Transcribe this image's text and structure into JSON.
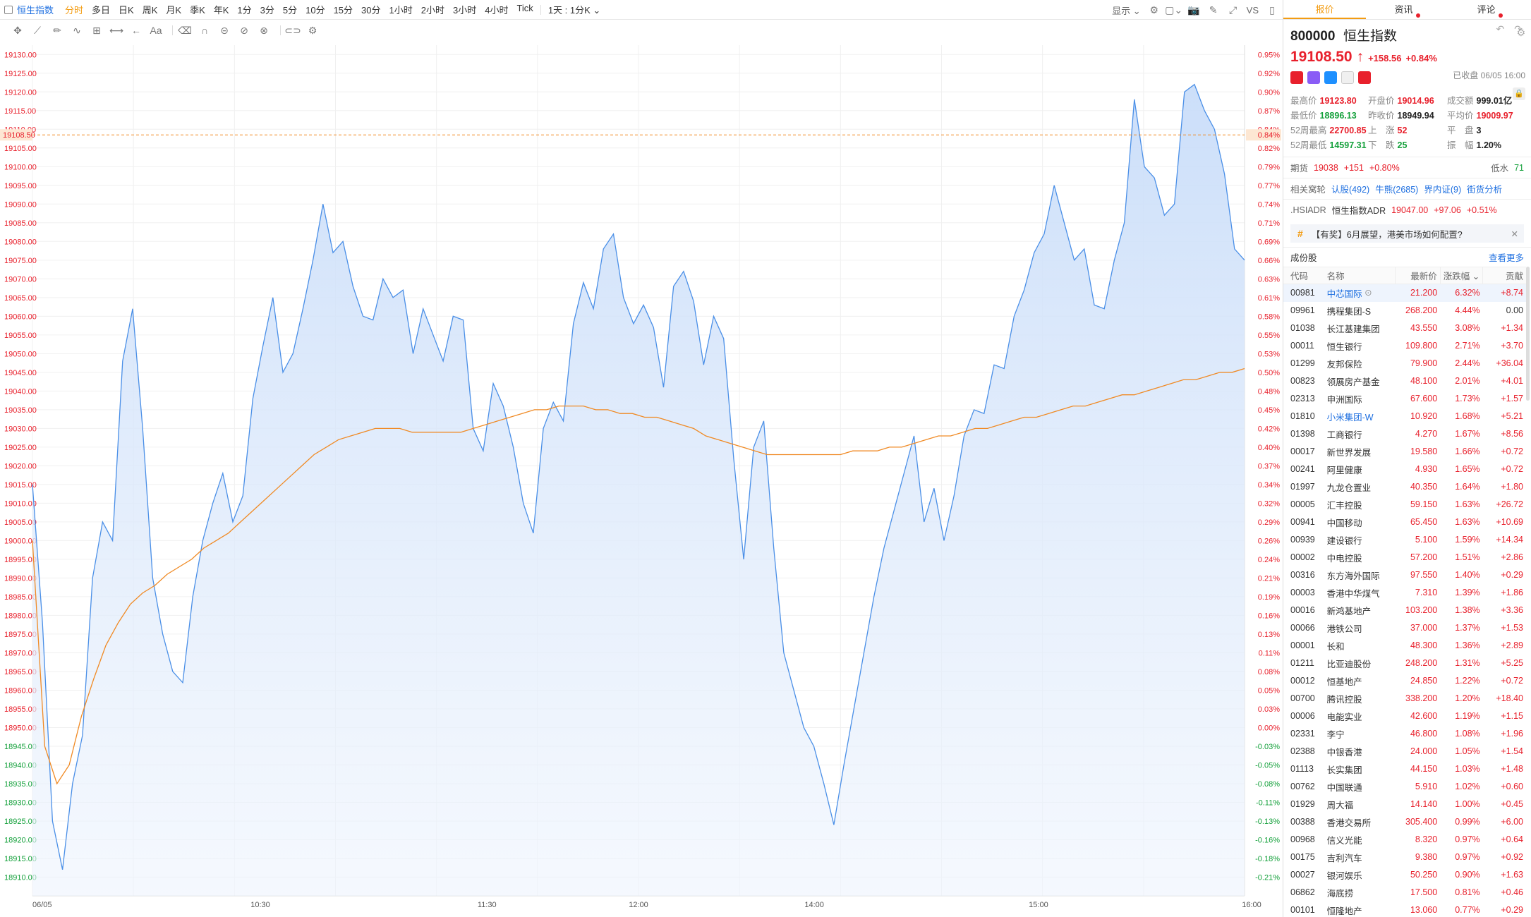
{
  "topbar": {
    "symbol": "恒生指数",
    "periods": [
      "分时",
      "多日",
      "日K",
      "周K",
      "月K",
      "季K",
      "年K",
      "1分",
      "3分",
      "5分",
      "10分",
      "15分",
      "30分",
      "1小时",
      "2小时",
      "3小时",
      "4小时",
      "Tick"
    ],
    "active_period": "分时",
    "range_select": "1天 : 1分K",
    "display_label": "显示",
    "vs_label": "VS"
  },
  "drawbar": {
    "text_tool": "Aa"
  },
  "chart_data": {
    "type": "area",
    "price_axis": {
      "min": 18905.0,
      "max": 19132.5,
      "step": 5,
      "labels_every": 5
    },
    "percent_axis": {
      "min": -0.22,
      "max": 0.96
    },
    "prev_close": 18949.94,
    "last_price": 19108.5,
    "last_price_label": "19108.50",
    "last_pct_label": "0.84%",
    "x_labels": [
      "06/05",
      "10:30",
      "11:30",
      "12:00",
      "14:00",
      "15:00",
      "16:00"
    ],
    "price_series": [
      19015,
      18978,
      18925,
      18912,
      18935,
      18948,
      18990,
      19005,
      19000,
      19048,
      19062,
      19030,
      18990,
      18975,
      18965,
      18962,
      18985,
      19000,
      19010,
      19018,
      19005,
      19012,
      19038,
      19052,
      19065,
      19045,
      19050,
      19062,
      19075,
      19090,
      19077,
      19080,
      19068,
      19060,
      19059,
      19070,
      19065,
      19067,
      19050,
      19062,
      19055,
      19048,
      19060,
      19059,
      19030,
      19024,
      19042,
      19036,
      19025,
      19010,
      19002,
      19030,
      19037,
      19032,
      19058,
      19069,
      19062,
      19078,
      19082,
      19065,
      19058,
      19063,
      19057,
      19041,
      19068,
      19072,
      19064,
      19047,
      19060,
      19054,
      19022,
      18995,
      19025,
      19032,
      18998,
      18970,
      18960,
      18950,
      18945,
      18935,
      18924,
      18940,
      18955,
      18970,
      18985,
      18998,
      19008,
      19018,
      19028,
      19005,
      19014,
      19000,
      19012,
      19028,
      19035,
      19034,
      19047,
      19046,
      19060,
      19067,
      19077,
      19082,
      19095,
      19085,
      19075,
      19078,
      19063,
      19062,
      19075,
      19085,
      19118,
      19100,
      19097,
      19087,
      19090,
      19120,
      19122,
      19115,
      19110,
      19098,
      19078,
      19075
    ],
    "avg_series": [
      19000,
      18945,
      18935,
      18940,
      18953,
      18963,
      18972,
      18978,
      18983,
      18986,
      18988,
      18991,
      18993,
      18995,
      18998,
      19000,
      19002,
      19005,
      19008,
      19011,
      19014,
      19017,
      19020,
      19023,
      19025,
      19027,
      19028,
      19029,
      19030,
      19030,
      19030,
      19029,
      19029,
      19029,
      19029,
      19029,
      19030,
      19031,
      19032,
      19033,
      19034,
      19035,
      19035,
      19036,
      19036,
      19036,
      19035,
      19035,
      19034,
      19034,
      19033,
      19033,
      19032,
      19031,
      19030,
      19028,
      19027,
      19026,
      19025,
      19024,
      19023,
      19023,
      19023,
      19023,
      19023,
      19023,
      19023,
      19024,
      19024,
      19024,
      19025,
      19025,
      19026,
      19027,
      19028,
      19028,
      19029,
      19030,
      19030,
      19031,
      19032,
      19033,
      19033,
      19034,
      19035,
      19036,
      19036,
      19037,
      19038,
      19039,
      19039,
      19040,
      19041,
      19042,
      19043,
      19043,
      19044,
      19045,
      19045,
      19046
    ],
    "title": "",
    "xlabel": "",
    "ylabel": "",
    "colors": {
      "line": "#4a8fe7",
      "area": "#dce9fb",
      "avg": "#f08a24",
      "up": "#e8202c",
      "down": "#13a03a",
      "last_line": "#f08a24"
    },
    "grid": true
  },
  "quote": {
    "tabs": [
      "报价",
      "资讯",
      "评论"
    ],
    "code": "800000",
    "name": "恒生指数",
    "price": "19108.50",
    "arrow": "↑",
    "change": "+158.56",
    "change_pct": "+0.84%",
    "closed_note": "已收盘 06/05 16:00",
    "stats": [
      {
        "label": "最高价",
        "value": "19123.80",
        "color": "red"
      },
      {
        "label": "开盘价",
        "value": "19014.96",
        "color": "red"
      },
      {
        "label": "成交额",
        "value": "999.01亿",
        "color": "dark"
      },
      {
        "label": "最低价",
        "value": "18896.13",
        "color": "green"
      },
      {
        "label": "昨收价",
        "value": "18949.94",
        "color": "dark"
      },
      {
        "label": "平均价",
        "value": "19009.97",
        "color": "red"
      },
      {
        "label": "52周最高",
        "value": "22700.85",
        "color": "red"
      },
      {
        "label": "上　涨",
        "value": "52",
        "color": "red"
      },
      {
        "label": "平　盘",
        "value": "3",
        "color": "dark"
      },
      {
        "label": "52周最低",
        "value": "14597.31",
        "color": "green"
      },
      {
        "label": "下　跌",
        "value": "25",
        "color": "green"
      },
      {
        "label": "振　幅",
        "value": "1.20%",
        "color": "dark"
      }
    ],
    "futures": {
      "label": "期货",
      "price": "19038",
      "change": "+151",
      "pct": "+0.80%",
      "side_label": "低水",
      "side_value": "71"
    },
    "related": {
      "label": "相关窝轮",
      "links": [
        "认股(492)",
        "牛熊(2685)",
        "界内证(9)",
        "街货分析"
      ]
    },
    "adr": {
      "code": ".HSIADR",
      "name": "恒生指数ADR",
      "price": "19047.00",
      "change": "+97.06",
      "pct": "+0.51%"
    },
    "promo": "【有奖】6月展望，港美市场如何配置?",
    "constituents_title": "成份股",
    "see_more": "查看更多",
    "columns": [
      "代码",
      "名称",
      "最新价",
      "涨跌幅",
      "贡献"
    ],
    "rows": [
      [
        "00981",
        "中芯国际",
        "21.200",
        "6.32%",
        "+8.74"
      ],
      [
        "09961",
        "携程集团-S",
        "268.200",
        "4.44%",
        "0.00"
      ],
      [
        "01038",
        "长江基建集团",
        "43.550",
        "3.08%",
        "+1.34"
      ],
      [
        "00011",
        "恒生银行",
        "109.800",
        "2.71%",
        "+3.70"
      ],
      [
        "01299",
        "友邦保险",
        "79.900",
        "2.44%",
        "+36.04"
      ],
      [
        "00823",
        "领展房产基金",
        "48.100",
        "2.01%",
        "+4.01"
      ],
      [
        "02313",
        "申洲国际",
        "67.600",
        "1.73%",
        "+1.57"
      ],
      [
        "01810",
        "小米集团-W",
        "10.920",
        "1.68%",
        "+5.21"
      ],
      [
        "01398",
        "工商银行",
        "4.270",
        "1.67%",
        "+8.56"
      ],
      [
        "00017",
        "新世界发展",
        "19.580",
        "1.66%",
        "+0.72"
      ],
      [
        "00241",
        "阿里健康",
        "4.930",
        "1.65%",
        "+0.72"
      ],
      [
        "01997",
        "九龙仓置业",
        "40.350",
        "1.64%",
        "+1.80"
      ],
      [
        "00005",
        "汇丰控股",
        "59.150",
        "1.63%",
        "+26.72"
      ],
      [
        "00941",
        "中国移动",
        "65.450",
        "1.63%",
        "+10.69"
      ],
      [
        "00939",
        "建设银行",
        "5.100",
        "1.59%",
        "+14.34"
      ],
      [
        "00002",
        "中电控股",
        "57.200",
        "1.51%",
        "+2.86"
      ],
      [
        "00316",
        "东方海外国际",
        "97.550",
        "1.40%",
        "+0.29"
      ],
      [
        "00003",
        "香港中华煤气",
        "7.310",
        "1.39%",
        "+1.86"
      ],
      [
        "00016",
        "新鸿基地产",
        "103.200",
        "1.38%",
        "+3.36"
      ],
      [
        "00066",
        "港铁公司",
        "37.000",
        "1.37%",
        "+1.53"
      ],
      [
        "00001",
        "长和",
        "48.300",
        "1.36%",
        "+2.89"
      ],
      [
        "01211",
        "比亚迪股份",
        "248.200",
        "1.31%",
        "+5.25"
      ],
      [
        "00012",
        "恒基地产",
        "24.850",
        "1.22%",
        "+0.72"
      ],
      [
        "00700",
        "腾讯控股",
        "338.200",
        "1.20%",
        "+18.40"
      ],
      [
        "00006",
        "电能实业",
        "42.600",
        "1.19%",
        "+1.15"
      ],
      [
        "02331",
        "李宁",
        "46.800",
        "1.08%",
        "+1.96"
      ],
      [
        "02388",
        "中银香港",
        "24.000",
        "1.05%",
        "+1.54"
      ],
      [
        "01113",
        "长实集团",
        "44.150",
        "1.03%",
        "+1.48"
      ],
      [
        "00762",
        "中国联通",
        "5.910",
        "1.02%",
        "+0.60"
      ],
      [
        "01929",
        "周大福",
        "14.140",
        "1.00%",
        "+0.45"
      ],
      [
        "00388",
        "香港交易所",
        "305.400",
        "0.99%",
        "+6.00"
      ],
      [
        "00968",
        "信义光能",
        "8.320",
        "0.97%",
        "+0.64"
      ],
      [
        "00175",
        "吉利汽车",
        "9.380",
        "0.97%",
        "+0.92"
      ],
      [
        "00027",
        "银河娱乐",
        "50.250",
        "0.90%",
        "+1.63"
      ],
      [
        "06862",
        "海底捞",
        "17.500",
        "0.81%",
        "+0.46"
      ],
      [
        "00101",
        "恒隆地产",
        "13.060",
        "0.77%",
        "+0.29"
      ]
    ]
  }
}
